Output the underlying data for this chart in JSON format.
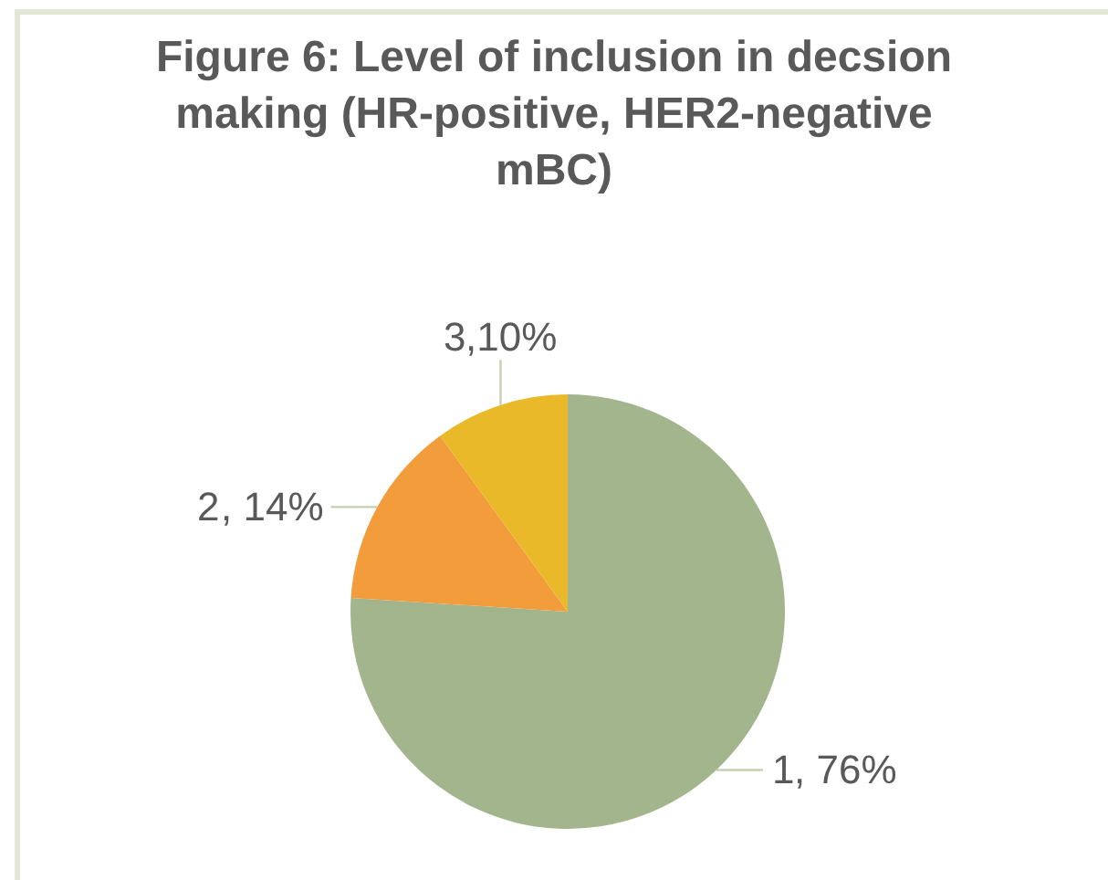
{
  "chart_data": {
    "type": "pie",
    "title": "Figure 6: Level of inclusion in decsion making (HR-positive, HER2-negative mBC)",
    "categories": [
      "1",
      "2",
      "3"
    ],
    "values": [
      76,
      14,
      10
    ],
    "colors": [
      "#a3b58c",
      "#f29c3c",
      "#e9b92a"
    ],
    "value_labels": [
      ", 76%",
      ", 14%",
      ",10%"
    ]
  }
}
